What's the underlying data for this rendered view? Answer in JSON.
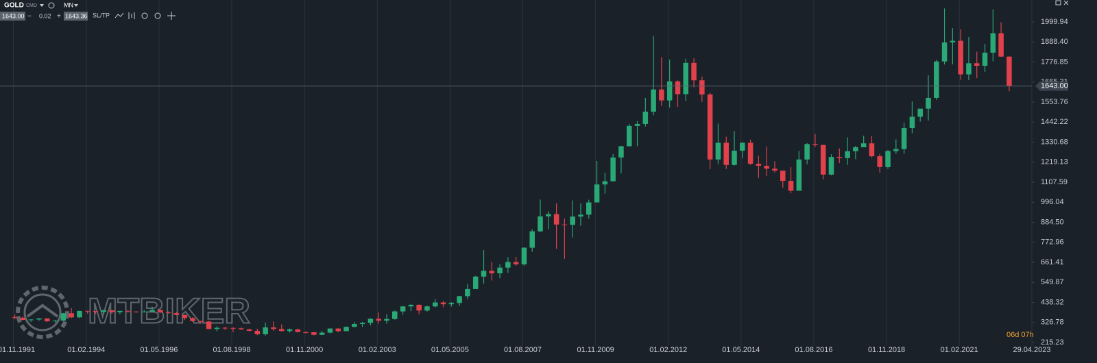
{
  "toolbar": {
    "symbol": "GOLD",
    "kind": "CMD",
    "timeframe": "MN",
    "bid": "1643.00",
    "minus": "−",
    "lot": "0.02",
    "plus": "+",
    "ask": "1643.36",
    "sltp": "SL/TP"
  },
  "watermark": "MTBIKER",
  "countdown": "06d 07h",
  "chart_data": {
    "type": "candlestick",
    "x": [
      "01.10.1991",
      "01.01.1992",
      "01.04.1992",
      "01.07.1992",
      "01.10.1992",
      "01.01.1993",
      "01.04.1993",
      "01.07.1993",
      "01.10.1993",
      "01.01.1994",
      "01.04.1994",
      "01.07.1994",
      "01.10.1994",
      "01.01.1995",
      "01.04.1995",
      "01.07.1995",
      "01.10.1995",
      "01.01.1996",
      "01.04.1996",
      "01.07.1996",
      "01.10.1996",
      "01.01.1997",
      "01.04.1997",
      "01.07.1997",
      "01.10.1997",
      "01.01.1998",
      "01.04.1998",
      "01.07.1998",
      "01.10.1998",
      "01.01.1999",
      "01.04.1999",
      "01.07.1999",
      "01.10.1999",
      "01.01.2000",
      "01.04.2000",
      "01.07.2000",
      "01.10.2000",
      "01.01.2001",
      "01.04.2001",
      "01.07.2001",
      "01.10.2001",
      "01.01.2002",
      "01.04.2002",
      "01.07.2002",
      "01.10.2002",
      "01.01.2003",
      "01.04.2003",
      "01.07.2003",
      "01.10.2003",
      "01.01.2004",
      "01.04.2004",
      "01.07.2004",
      "01.10.2004",
      "01.01.2005",
      "01.04.2005",
      "01.07.2005",
      "01.10.2005",
      "01.01.2006",
      "01.04.2006",
      "01.07.2006",
      "01.10.2006",
      "01.01.2007",
      "01.04.2007",
      "01.07.2007",
      "01.10.2007",
      "01.01.2008",
      "01.04.2008",
      "01.07.2008",
      "01.10.2008",
      "01.01.2009",
      "01.04.2009",
      "01.07.2009",
      "01.10.2009",
      "01.01.2010",
      "01.04.2010",
      "01.07.2010",
      "01.10.2010",
      "01.01.2011",
      "01.04.2011",
      "01.07.2011",
      "01.10.2011",
      "01.01.2012",
      "01.04.2012",
      "01.07.2012",
      "01.10.2012",
      "01.01.2013",
      "01.04.2013",
      "01.07.2013",
      "01.10.2013",
      "01.01.2014",
      "01.04.2014",
      "01.07.2014",
      "01.10.2014",
      "01.01.2015",
      "01.04.2015",
      "01.07.2015",
      "01.10.2015",
      "01.01.2016",
      "01.04.2016",
      "01.07.2016",
      "01.10.2016",
      "01.01.2017",
      "01.04.2017",
      "01.07.2017",
      "01.10.2017",
      "01.01.2018",
      "01.04.2018",
      "01.07.2018",
      "01.10.2018",
      "01.01.2019",
      "01.04.2019",
      "01.07.2019",
      "01.10.2019",
      "01.01.2020",
      "01.04.2020",
      "01.07.2020",
      "01.10.2020",
      "01.01.2021",
      "01.04.2021",
      "01.07.2021",
      "01.10.2021",
      "01.01.2022",
      "01.04.2022",
      "01.07.2022"
    ],
    "open": [
      357,
      353,
      341,
      343,
      349,
      333,
      337,
      378,
      355,
      391,
      390,
      385,
      394,
      383,
      391,
      387,
      384,
      387,
      396,
      382,
      379,
      369,
      351,
      334,
      332,
      290,
      297,
      296,
      294,
      288,
      280,
      261,
      299,
      290,
      279,
      288,
      273,
      272,
      258,
      270,
      293,
      278,
      302,
      318,
      324,
      347,
      336,
      346,
      388,
      416,
      425,
      393,
      416,
      438,
      428,
      435,
      473,
      513,
      582,
      614,
      600,
      632,
      663,
      650,
      743,
      834,
      917,
      930,
      872,
      870,
      916,
      927,
      995,
      1095,
      1113,
      1245,
      1308,
      1421,
      1432,
      1500,
      1624,
      1563,
      1669,
      1598,
      1772,
      1675,
      1596,
      1234,
      1327,
      1204,
      1283,
      1327,
      1210,
      1199,
      1183,
      1172,
      1115,
      1060,
      1234,
      1320,
      1315,
      1150,
      1248,
      1242,
      1280,
      1302,
      1324,
      1252,
      1192,
      1281,
      1292,
      1409,
      1472,
      1517,
      1577,
      1780,
      1886,
      1895,
      1708,
      1770,
      1756,
      1829,
      1937,
      1807
    ],
    "high": [
      370,
      360,
      345,
      350,
      350,
      340,
      380,
      407,
      392,
      393,
      390,
      398,
      397,
      392,
      396,
      390,
      396,
      415,
      397,
      388,
      384,
      370,
      356,
      336,
      335,
      305,
      302,
      300,
      299,
      292,
      292,
      326,
      332,
      316,
      293,
      292,
      276,
      273,
      280,
      294,
      294,
      304,
      330,
      330,
      350,
      382,
      372,
      393,
      417,
      430,
      427,
      420,
      456,
      445,
      440,
      475,
      540,
      586,
      730,
      664,
      650,
      690,
      692,
      745,
      845,
      1011,
      946,
      990,
      905,
      1006,
      990,
      1010,
      1226,
      1160,
      1265,
      1310,
      1432,
      1448,
      1577,
      1921,
      1804,
      1790,
      1675,
      1795,
      1797,
      1696,
      1606,
      1434,
      1361,
      1392,
      1331,
      1345,
      1255,
      1307,
      1224,
      1172,
      1191,
      1282,
      1325,
      1375,
      1316,
      1263,
      1296,
      1357,
      1310,
      1366,
      1365,
      1265,
      1287,
      1346,
      1439,
      1557,
      1516,
      1703,
      1789,
      2075,
      1965,
      1959,
      1916,
      1834,
      1877,
      2070,
      1998,
      1808
    ],
    "low": [
      344,
      338,
      330,
      336,
      330,
      326,
      335,
      350,
      350,
      375,
      375,
      375,
      375,
      372,
      380,
      380,
      382,
      385,
      380,
      377,
      367,
      340,
      332,
      320,
      290,
      277,
      285,
      272,
      284,
      278,
      256,
      252,
      280,
      276,
      270,
      270,
      264,
      255,
      256,
      265,
      272,
      278,
      300,
      302,
      310,
      320,
      320,
      342,
      370,
      390,
      372,
      387,
      410,
      411,
      415,
      418,
      456,
      513,
      542,
      560,
      573,
      603,
      642,
      643,
      720,
      830,
      846,
      737,
      681,
      800,
      865,
      905,
      995,
      1044,
      1110,
      1157,
      1306,
      1308,
      1418,
      1480,
      1532,
      1523,
      1527,
      1560,
      1636,
      1555,
      1180,
      1208,
      1181,
      1200,
      1240,
      1204,
      1131,
      1141,
      1162,
      1077,
      1046,
      1060,
      1207,
      1305,
      1123,
      1146,
      1214,
      1204,
      1236,
      1302,
      1246,
      1160,
      1182,
      1266,
      1266,
      1380,
      1445,
      1451,
      1566,
      1763,
      1764,
      1677,
      1676,
      1687,
      1722,
      1780,
      1805,
      1614
    ],
    "close": [
      353,
      341,
      343,
      349,
      333,
      337,
      378,
      355,
      391,
      390,
      385,
      394,
      383,
      391,
      387,
      384,
      387,
      396,
      382,
      379,
      369,
      351,
      334,
      332,
      290,
      297,
      296,
      294,
      288,
      280,
      261,
      299,
      290,
      279,
      288,
      273,
      272,
      258,
      270,
      293,
      278,
      302,
      318,
      324,
      347,
      336,
      346,
      388,
      416,
      425,
      393,
      416,
      438,
      428,
      435,
      473,
      513,
      582,
      614,
      600,
      632,
      663,
      650,
      743,
      834,
      917,
      930,
      872,
      870,
      916,
      927,
      995,
      1095,
      1113,
      1245,
      1308,
      1421,
      1432,
      1500,
      1624,
      1563,
      1669,
      1598,
      1772,
      1675,
      1596,
      1234,
      1327,
      1204,
      1283,
      1327,
      1210,
      1199,
      1183,
      1172,
      1115,
      1060,
      1234,
      1320,
      1315,
      1150,
      1248,
      1242,
      1280,
      1302,
      1324,
      1252,
      1192,
      1281,
      1292,
      1409,
      1472,
      1517,
      1577,
      1780,
      1886,
      1895,
      1708,
      1770,
      1756,
      1829,
      1937,
      1807,
      1643
    ],
    "up_color": "#2aa876",
    "down_color": "#e0414b",
    "xlim": [
      "01.06.1991",
      "29.04.2023"
    ],
    "xticks": [
      "01.11.1991",
      "01.02.1994",
      "01.05.1996",
      "01.08.1998",
      "01.11.2000",
      "01.02.2003",
      "01.05.2005",
      "01.08.2007",
      "01.11.2009",
      "01.02.2012",
      "01.05.2014",
      "01.08.2016",
      "01.11.2018",
      "01.02.2021",
      "29.04.2023"
    ],
    "ylim": [
      158,
      2084
    ],
    "yticks": [
      215.23,
      326.78,
      438.32,
      549.87,
      661.41,
      772.96,
      {
        "value": 884.5,
        "label": "884.50"
      },
      996.04,
      1107.59,
      1219.13,
      1330.68,
      1442.22,
      1553.76,
      1665.31,
      1776.85,
      {
        "value": 1888.4,
        "label": "1888.40"
      },
      1999.94
    ],
    "current_price": {
      "value": 1643,
      "label": "1643.00"
    },
    "grid": "x"
  }
}
